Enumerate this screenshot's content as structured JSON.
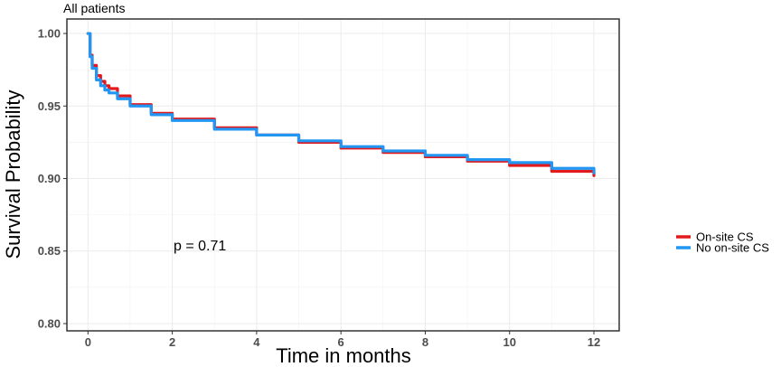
{
  "chart_data": {
    "type": "line",
    "subtitle": "All patients",
    "xlabel": "Time in months",
    "ylabel": "Survival Probability",
    "xlim": [
      -0.5,
      12.6
    ],
    "ylim": [
      0.795,
      1.01
    ],
    "x_ticks": [
      0,
      2,
      4,
      6,
      8,
      10,
      12
    ],
    "x_tick_labels": [
      "0",
      "2",
      "4",
      "6",
      "8",
      "10",
      "12"
    ],
    "y_ticks": [
      0.8,
      0.85,
      0.9,
      0.95,
      1.0
    ],
    "y_tick_labels": [
      "0.80",
      "0.85",
      "0.90",
      "0.95",
      "1.00"
    ],
    "grid": true,
    "legend_position": "right",
    "annotation": "p = 0.71",
    "series": [
      {
        "name": "On-site CS",
        "color": "#e31a1c",
        "x": [
          0,
          0.05,
          0.1,
          0.2,
          0.3,
          0.4,
          0.5,
          0.7,
          1.0,
          1.5,
          2,
          3,
          4,
          5,
          6,
          7,
          8,
          9,
          10,
          11,
          12
        ],
        "y": [
          1.0,
          0.985,
          0.978,
          0.971,
          0.967,
          0.964,
          0.962,
          0.957,
          0.951,
          0.945,
          0.941,
          0.935,
          0.93,
          0.925,
          0.921,
          0.918,
          0.915,
          0.912,
          0.909,
          0.905,
          0.902
        ]
      },
      {
        "name": "No on-site CS",
        "color": "#2196f3",
        "x": [
          0,
          0.05,
          0.1,
          0.2,
          0.3,
          0.4,
          0.5,
          0.7,
          1.0,
          1.5,
          2,
          3,
          4,
          5,
          6,
          7,
          8,
          9,
          10,
          11,
          12
        ],
        "y": [
          1.0,
          0.984,
          0.976,
          0.968,
          0.964,
          0.961,
          0.959,
          0.955,
          0.95,
          0.944,
          0.94,
          0.934,
          0.93,
          0.926,
          0.922,
          0.919,
          0.916,
          0.913,
          0.911,
          0.907,
          0.904
        ]
      }
    ]
  }
}
